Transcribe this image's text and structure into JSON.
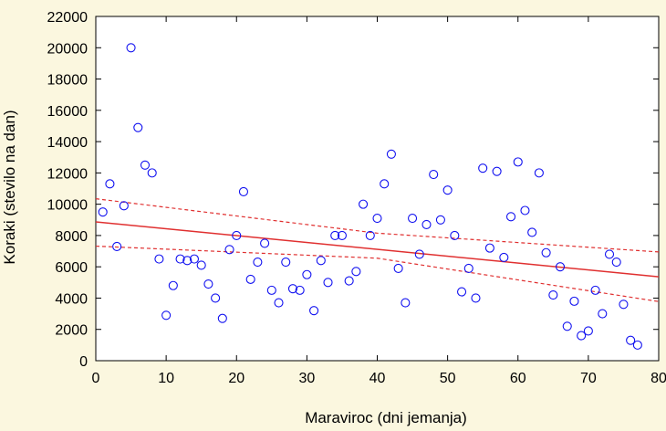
{
  "chart_data": {
    "type": "scatter",
    "title": "",
    "xlabel": "Maraviroc (dni jemanja)",
    "ylabel": "Koraki (stevilo na dan)",
    "xlim": [
      0,
      80
    ],
    "ylim": [
      0,
      22000
    ],
    "xticks": [
      0,
      10,
      20,
      30,
      40,
      50,
      60,
      70,
      80
    ],
    "yticks": [
      0,
      2000,
      4000,
      6000,
      8000,
      10000,
      12000,
      14000,
      16000,
      18000,
      20000,
      22000
    ],
    "grid": false,
    "colors": {
      "points": "#1010f0",
      "fit": "#e03030",
      "background": "#fbf7df",
      "plot": "#ffffff"
    },
    "fit_line": {
      "x": [
        0,
        80
      ],
      "y": [
        8870,
        5360
      ]
    },
    "ci_upper": {
      "x": [
        0,
        40,
        80
      ],
      "y": [
        10350,
        8150,
        6950
      ]
    },
    "ci_lower": {
      "x": [
        0,
        40,
        80
      ],
      "y": [
        7320,
        6550,
        3780
      ]
    },
    "points": {
      "x": [
        1,
        2,
        3,
        4,
        5,
        6,
        7,
        8,
        9,
        10,
        11,
        12,
        13,
        14,
        15,
        16,
        17,
        18,
        19,
        20,
        21,
        22,
        23,
        24,
        25,
        26,
        27,
        28,
        29,
        30,
        31,
        32,
        33,
        34,
        35,
        36,
        37,
        38,
        39,
        40,
        41,
        42,
        43,
        44,
        45,
        46,
        47,
        48,
        49,
        50,
        51,
        52,
        53,
        54,
        55,
        56,
        57,
        58,
        59,
        60,
        61,
        62,
        63,
        64,
        65,
        66,
        67,
        68,
        69,
        70,
        71,
        72,
        73,
        74,
        75,
        76,
        77
      ],
      "y": [
        9500,
        11300,
        7300,
        9900,
        20000,
        14900,
        12500,
        12000,
        6500,
        2900,
        4800,
        6500,
        6400,
        6500,
        6100,
        4900,
        4000,
        2700,
        7100,
        8000,
        10800,
        5200,
        6300,
        7500,
        4500,
        3700,
        6300,
        4600,
        4500,
        5500,
        3200,
        6400,
        5000,
        8000,
        8000,
        5100,
        5700,
        10000,
        8000,
        9100,
        11300,
        13200,
        5900,
        3700,
        9100,
        6800,
        8700,
        11900,
        9000,
        10900,
        8000,
        4400,
        5900,
        4000,
        12300,
        7200,
        12100,
        6600,
        9200,
        12700,
        9600,
        8200,
        12000,
        6900,
        4200,
        6000,
        2200,
        3800,
        1600,
        1900,
        4500,
        3000,
        6800,
        6300,
        3600,
        1300,
        1000
      ]
    }
  }
}
